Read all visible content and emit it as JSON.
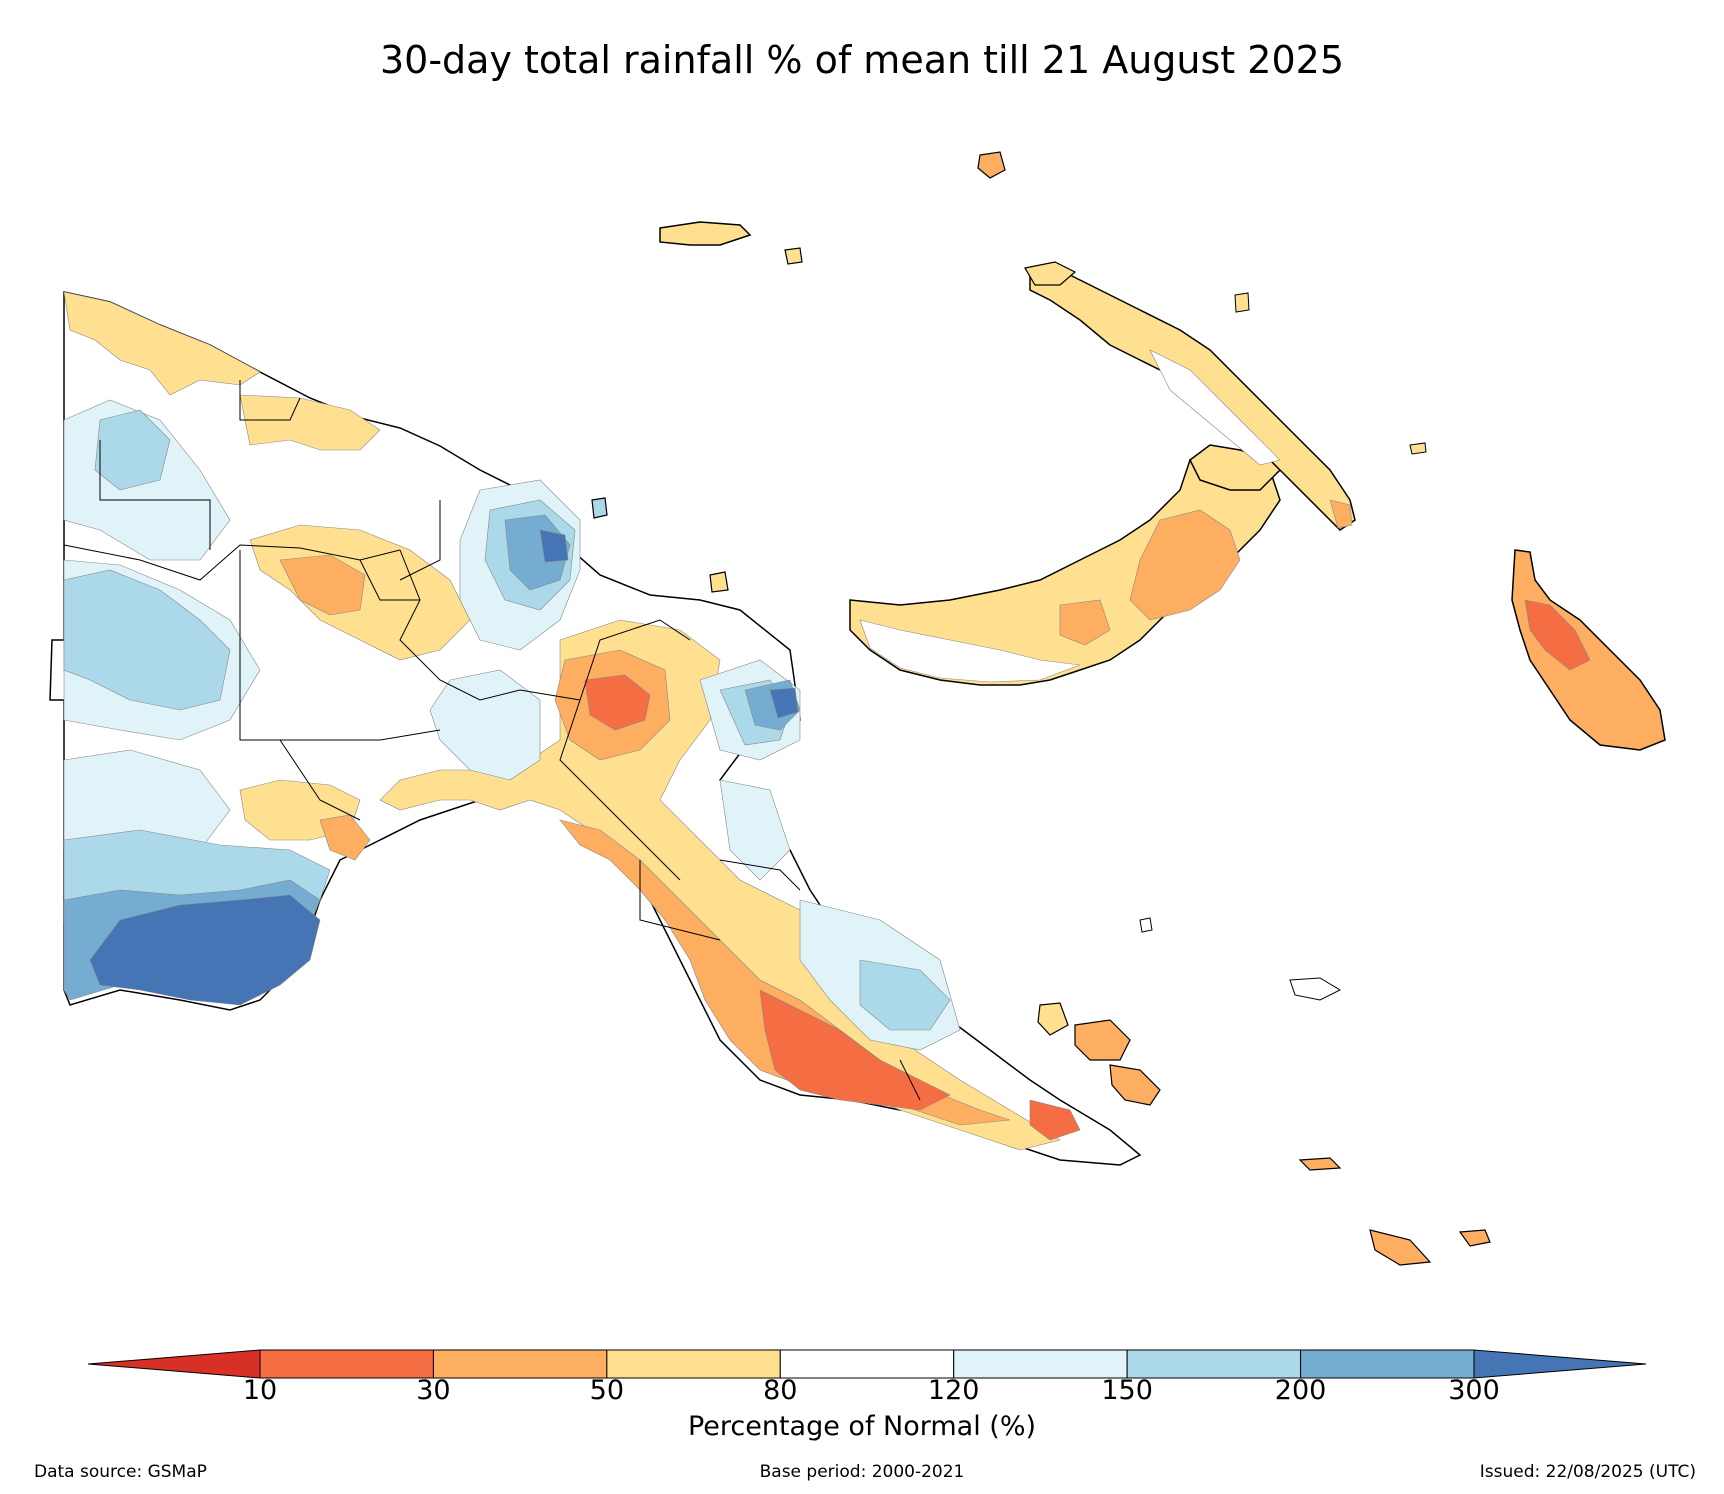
{
  "title": "30-day total rainfall % of mean till 21 August 2025",
  "colorbar": {
    "label": "Percentage of Normal (%)",
    "ticks": [
      "10",
      "30",
      "50",
      "80",
      "120",
      "150",
      "200",
      "300"
    ],
    "under_color": "#d73027",
    "over_color": "#4575b4",
    "bins": [
      {
        "range": "10-30",
        "color": "#f46d43"
      },
      {
        "range": "30-50",
        "color": "#fdae61"
      },
      {
        "range": "50-80",
        "color": "#fee090"
      },
      {
        "range": "80-120",
        "color": "#ffffff"
      },
      {
        "range": "120-150",
        "color": "#e0f3f8"
      },
      {
        "range": "150-200",
        "color": "#abd9e9"
      },
      {
        "range": "200-300",
        "color": "#74add1"
      }
    ]
  },
  "footer": {
    "source": "Data source: GSMaP",
    "base_period": "Base period: 2000-2021",
    "issued": "Issued: 22/08/2025 (UTC)"
  }
}
